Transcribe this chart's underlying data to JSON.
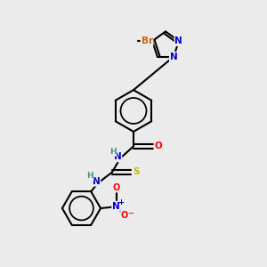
{
  "bg_color": "#ebebeb",
  "bond_color": "#000000",
  "bond_width": 1.5,
  "atom_colors": {
    "N": "#0000cc",
    "O": "#ff0000",
    "S": "#bbbb00",
    "Br": "#cc6600",
    "H": "#4a9090",
    "C": "#000000"
  },
  "font_size": 7.5,
  "title": ""
}
